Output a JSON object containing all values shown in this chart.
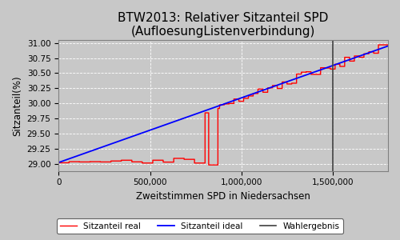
{
  "title": "BTW2013: Relativer Sitzanteil SPD\n(AufloesungListenverbindung)",
  "xlabel": "Zweitstimmen SPD in Niedersachsen",
  "ylabel": "Sitzanteil(%)",
  "xlim": [
    0,
    1800000
  ],
  "ylim": [
    28.88,
    31.05
  ],
  "yticks": [
    29.0,
    29.25,
    29.5,
    29.75,
    30.0,
    30.25,
    30.5,
    30.75,
    31.0
  ],
  "xticks": [
    0,
    500000,
    1000000,
    1500000
  ],
  "wahlergebnis_x": 1500000,
  "background_color": "#c8c8c8",
  "fig_background_color": "#c8c8c8",
  "grid_color": "#ffffff",
  "line_real_color": "#ff0000",
  "line_ideal_color": "#0000ff",
  "line_wahlergebnis_color": "#404040",
  "legend_labels": [
    "Sitzanteil real",
    "Sitzanteil ideal",
    "Wahlergebnis"
  ],
  "title_fontsize": 11,
  "axis_fontsize": 8.5,
  "tick_fontsize": 7.5,
  "y_ideal_start": 29.02,
  "y_ideal_end": 30.95,
  "x_max": 1800000
}
